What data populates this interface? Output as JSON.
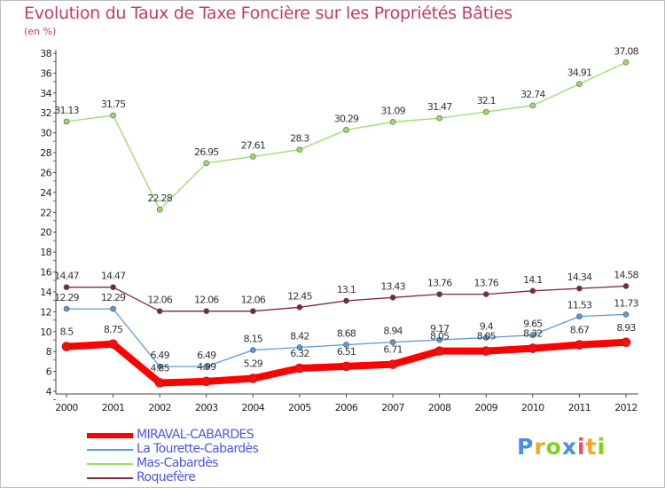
{
  "chart_data": {
    "type": "line",
    "title": "Evolution du Taux de Taxe Foncière sur les Propriétés Bâties",
    "ylabel": "(en %)",
    "xlabel": "",
    "x": [
      "2000",
      "2001",
      "2002",
      "2003",
      "2004",
      "2005",
      "2006",
      "2007",
      "2008",
      "2009",
      "2010",
      "2011",
      "2012"
    ],
    "ylim": [
      4,
      38
    ],
    "yticks": [
      4,
      6,
      8,
      10,
      12,
      14,
      16,
      18,
      20,
      22,
      24,
      26,
      28,
      30,
      32,
      34,
      36,
      38
    ],
    "grid": false,
    "legend_position": "bottom-left",
    "series": [
      {
        "name": "MIRAVAL-CABARDES",
        "color": "#ff0000",
        "values": [
          8.5,
          8.75,
          4.85,
          4.99,
          5.29,
          6.32,
          6.51,
          6.71,
          8.05,
          8.05,
          8.32,
          8.67,
          8.93
        ],
        "labels": [
          "8.5",
          "8.75",
          "4.85",
          "4.99",
          "5.29",
          "6.32",
          "6.51",
          "6.71",
          "8.05",
          "8.05",
          "8.32",
          "8.67",
          "8.93"
        ]
      },
      {
        "name": "La Tourette-Cabardès",
        "color": "#5b9bd5",
        "values": [
          12.29,
          12.29,
          6.49,
          6.49,
          8.15,
          8.42,
          8.68,
          8.94,
          9.17,
          9.4,
          9.65,
          11.53,
          11.73
        ],
        "labels": [
          "12.29",
          "12.29",
          "6.49",
          "6.49",
          "8.15",
          "8.42",
          "8.68",
          "8.94",
          "9.17",
          "9.4",
          "9.65",
          "11.53",
          "11.73"
        ]
      },
      {
        "name": "Mas-Cabardès",
        "color": "#99dd66",
        "values": [
          31.13,
          31.75,
          22.28,
          26.95,
          27.61,
          28.3,
          30.29,
          31.09,
          31.47,
          32.1,
          32.74,
          34.91,
          37.08
        ],
        "labels": [
          "31.13",
          "31.75",
          "22.28",
          "26.95",
          "27.61",
          "28.3",
          "30.29",
          "31.09",
          "31.47",
          "32.1",
          "32.74",
          "34.91",
          "37.08"
        ]
      },
      {
        "name": "Roquefère",
        "color": "#7a2a35",
        "values": [
          14.47,
          14.47,
          12.06,
          12.06,
          12.06,
          12.45,
          13.1,
          13.43,
          13.76,
          13.76,
          14.1,
          14.34,
          14.58
        ],
        "labels": [
          "14.47",
          "14.47",
          "12.06",
          "12.06",
          "12.06",
          "12.45",
          "13.1",
          "13.43",
          "13.76",
          "13.76",
          "14.1",
          "14.34",
          "14.58"
        ]
      }
    ]
  },
  "legend": {
    "items": [
      {
        "label": "MIRAVAL-CABARDES",
        "color": "#ff0000"
      },
      {
        "label": "La Tourette-Cabardès",
        "color": "#5b9bd5"
      },
      {
        "label": "Mas-Cabardès",
        "color": "#99dd66"
      },
      {
        "label": "Roquefère",
        "color": "#7a2a35"
      }
    ]
  },
  "logo": {
    "text": "Proxiti",
    "colors": [
      "#4a90e2",
      "#f5a623",
      "#7ed321",
      "#4a90e2",
      "#e94e77",
      "#f5a623",
      "#7ed321"
    ]
  }
}
